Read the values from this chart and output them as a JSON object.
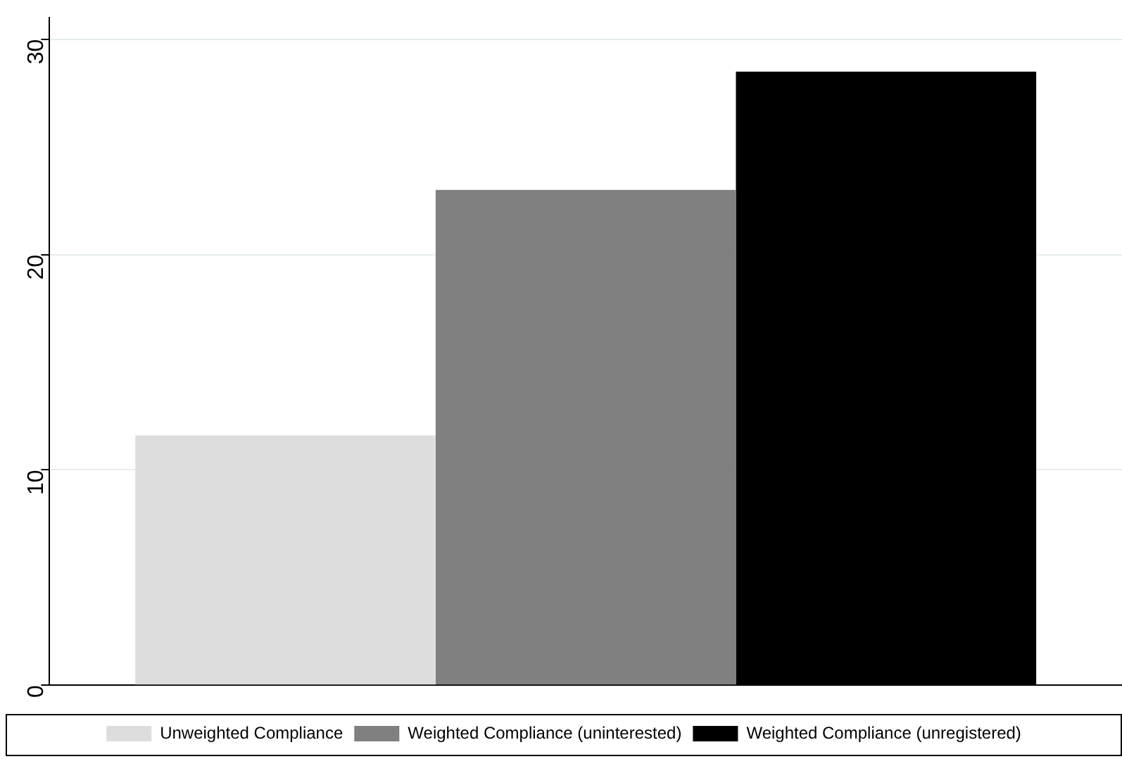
{
  "chart_data": {
    "type": "bar",
    "categories": [
      null
    ],
    "series": [
      {
        "name": "Unweighted Compliance",
        "color": "#dddddd",
        "values": [
          11.6
        ]
      },
      {
        "name": "Weighted Compliance (uninterested)",
        "color": "#808080",
        "values": [
          23.0
        ]
      },
      {
        "name": "Weighted Compliance (unregistered)",
        "color": "#000000",
        "values": [
          28.5
        ]
      }
    ],
    "ylim": [
      0,
      31
    ],
    "yticks": [
      0,
      10,
      20,
      30
    ],
    "grid": "y",
    "legend": "bottom"
  }
}
